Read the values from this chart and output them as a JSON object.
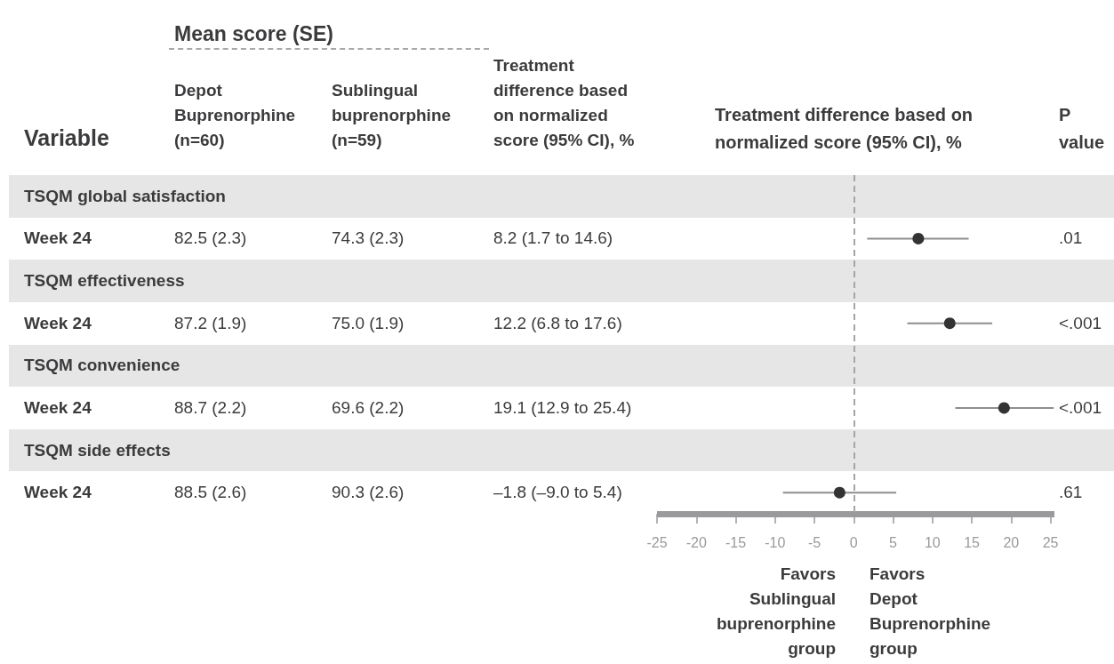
{
  "chart_data": {
    "type": "scatter",
    "orientation": "horizontal",
    "xlabel": "Treatment difference based on normalized score (95% CI), %",
    "categories": [
      null,
      null,
      null,
      null,
      null,
      null,
      null,
      null
    ],
    "values": [
      null,
      8.2,
      null,
      12.2,
      null,
      19.1,
      null,
      -1.8
    ],
    "errors": [
      null,
      [
        1.7,
        14.6
      ],
      null,
      [
        6.8,
        17.6
      ],
      null,
      [
        12.9,
        25.4
      ],
      null,
      [
        -9.0,
        5.4
      ]
    ],
    "color": "#333333",
    "marker": "circle",
    "xlim": [
      -25,
      25.5
    ],
    "xticks": [
      -25,
      -20,
      -15,
      -10,
      -5,
      0,
      5,
      10,
      15,
      20,
      25
    ],
    "ref_lines": [
      {
        "axis": "x",
        "value": 0,
        "color": "#a5a5a7",
        "line_style": "dashed"
      }
    ],
    "annotations": [
      "Mean score (SE)",
      "Variable",
      "Depot Buprenorphine (n=60)",
      "Sublingual buprenorphine (n=59)",
      "Treatment difference based on normalized score (95% CI), %",
      "P value",
      "TSQM global satisfaction",
      "Week 24",
      "82.5 (2.3)",
      "74.3 (2.3)",
      "8.2 (1.7 to 14.6)",
      ".01",
      "TSQM effectiveness",
      "Week 24",
      "87.2 (1.9)",
      "75.0 (1.9)",
      "12.2 (6.8 to 17.6)",
      "<.001",
      "TSQM convenience",
      "Week 24",
      "88.7 (2.2)",
      "69.6 (2.2)",
      "19.1 (12.9 to 25.4)",
      "<.001",
      "TSQM side effects",
      "Week 24",
      "88.5 (2.6)",
      "90.3 (2.6)",
      "–1.8 (–9.0 to 5.4)",
      ".61",
      "Favors Sublingual buprenorphine group",
      "Favors Depot Buprenorphine group"
    ]
  }
}
